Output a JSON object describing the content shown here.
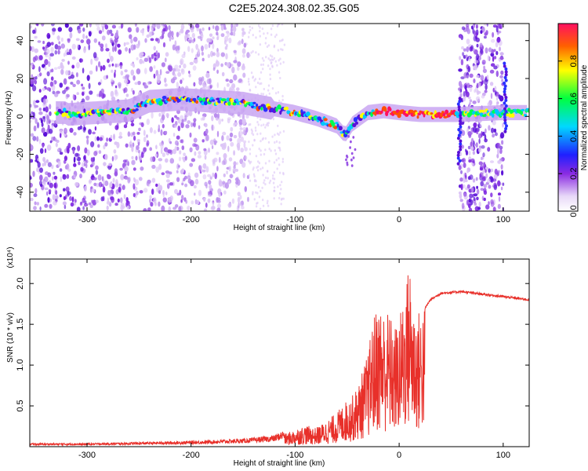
{
  "page": {
    "title": "C2E5.2024.308.02.35.G05"
  },
  "chart_data": [
    {
      "type": "heatmap",
      "title": "",
      "xlabel": "Height of straight line (km)",
      "ylabel": "Frequency (Hz)",
      "xlim": [
        -355,
        125
      ],
      "ylim": [
        -50,
        49
      ],
      "xticks": [
        -300,
        -200,
        -100,
        0,
        100
      ],
      "xtick_labels": [
        "-300",
        "-200",
        "-100",
        "0",
        "100"
      ],
      "yticks": [
        -40,
        -20,
        0,
        20,
        40
      ],
      "ytick_labels": [
        "-40",
        "-20",
        "0",
        "20",
        "40"
      ],
      "colorbar": {
        "label": "Normalized spectral amplitude",
        "range": [
          0,
          1
        ],
        "ticks": [
          0.0,
          0.2,
          0.4,
          0.6,
          0.8
        ],
        "tick_labels": [
          "0.0",
          "0.2",
          "0.4",
          "0.6",
          "0.8"
        ]
      },
      "ridge": {
        "description_points": [
          [
            -320,
            1
          ],
          [
            -260,
            3
          ],
          [
            -240,
            8
          ],
          [
            -210,
            9
          ],
          [
            -180,
            8
          ],
          [
            -150,
            7
          ],
          [
            -120,
            4
          ],
          [
            -100,
            2
          ],
          [
            -80,
            -1
          ],
          [
            -60,
            -5
          ],
          [
            -52,
            -10
          ],
          [
            -45,
            -4
          ],
          [
            -30,
            2
          ],
          [
            -15,
            3
          ],
          [
            0,
            2
          ],
          [
            20,
            1
          ],
          [
            55,
            1
          ],
          [
            100,
            2
          ],
          [
            125,
            2
          ]
        ]
      },
      "noise_regions": [
        [
          -355,
          -145
        ],
        [
          58,
          100
        ]
      ]
    },
    {
      "type": "line",
      "title": "",
      "xlabel": "Height of straight line (km)",
      "ylabel": "SNR (10 * v/v)",
      "y_multiplier": "(x10⁴)",
      "xlim": [
        -355,
        125
      ],
      "ylim": [
        0.0,
        2.3
      ],
      "xticks": [
        -300,
        -200,
        -100,
        0,
        100
      ],
      "xtick_labels": [
        "-300",
        "-200",
        "-100",
        "0",
        "100"
      ],
      "yticks": [
        0.5,
        1.0,
        1.5,
        2.0
      ],
      "ytick_labels": [
        "0.5",
        "1.0",
        "1.5",
        "2.0"
      ],
      "series": [
        {
          "color": "#e8302a",
          "envelope_x": [
            -355,
            -300,
            -250,
            -200,
            -150,
            -120,
            -100,
            -90,
            -80,
            -70,
            -60,
            -50,
            -45,
            -40,
            -35,
            -30,
            -25,
            -20,
            -15,
            -10,
            -5,
            0,
            5,
            10,
            15,
            20,
            25,
            30,
            40,
            60,
            80,
            100,
            125
          ],
          "envelope_y": [
            0.03,
            0.03,
            0.04,
            0.05,
            0.07,
            0.1,
            0.2,
            0.25,
            0.22,
            0.3,
            0.4,
            0.55,
            0.6,
            0.7,
            0.9,
            1.1,
            1.5,
            1.7,
            1.6,
            1.6,
            1.4,
            1.5,
            1.8,
            2.2,
            1.6,
            1.6,
            1.7,
            1.8,
            1.88,
            1.9,
            1.87,
            1.84,
            1.8
          ]
        }
      ]
    }
  ]
}
